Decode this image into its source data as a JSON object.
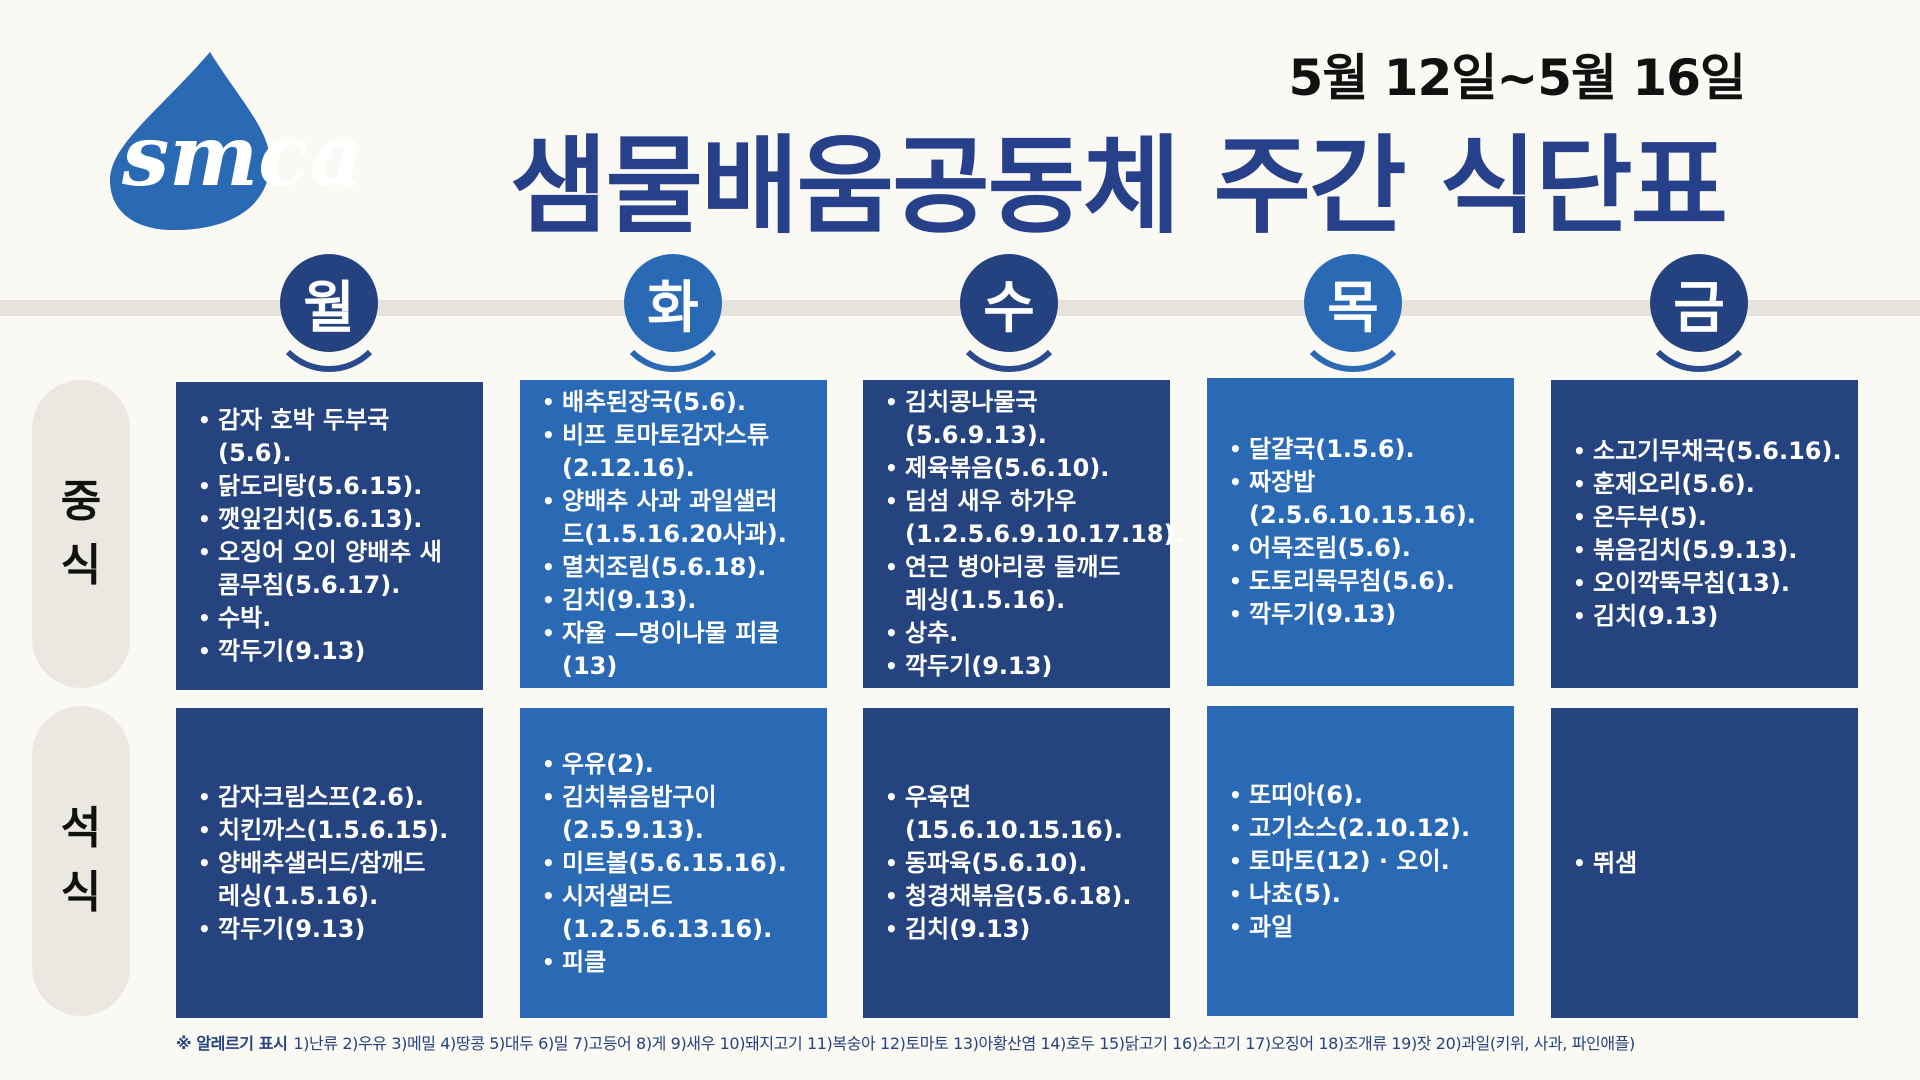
{
  "header": {
    "logo_text": "smca",
    "date_range": "5월 12일~5월 16일",
    "title": "샘물배움공동체 주간 식단표"
  },
  "days": [
    "월",
    "화",
    "수",
    "목",
    "금"
  ],
  "meals": {
    "lunch_label": [
      "중",
      "식"
    ],
    "dinner_label": [
      "석",
      "식"
    ]
  },
  "lunch": [
    [
      "감자 호박 두부국\n(5.6).",
      "닭도리탕(5.6.15).",
      "깻잎김치(5.6.13).",
      "오징어 오이 양배추 새\n콤무침(5.6.17).",
      "수박.",
      "깍두기(9.13)"
    ],
    [
      "배추된장국(5.6).",
      "비프 토마토감자스튜\n(2.12.16).",
      "양배추 사과 과일샐러\n드(1.5.16.20사과).",
      "멸치조림(5.6.18).",
      "김치(9.13).",
      "자율 —명이나물 피클\n(13)"
    ],
    [
      "김치콩나물국\n(5.6.9.13).",
      "제육볶음(5.6.10).",
      "딤섬 새우 하가우\n(1.2.5.6.9.10.17.18).",
      "연근 병아리콩 들깨드\n레싱(1.5.16).",
      "상추.",
      "깍두기(9.13)"
    ],
    [
      "달걀국(1.5.6).",
      "짜장밥\n(2.5.6.10.15.16).",
      "어묵조림(5.6).",
      "도토리묵무침(5.6).",
      "깍두기(9.13)"
    ],
    [
      "소고기무채국(5.6.16).",
      "훈제오리(5.6).",
      "온두부(5).",
      "볶음김치(5.9.13).",
      "오이깍뚝무침(13).",
      "김치(9.13)"
    ]
  ],
  "dinner": [
    [
      "감자크림스프(2.6).",
      "치킨까스(1.5.6.15).",
      "양배추샐러드/참깨드\n레싱(1.5.16).",
      "깍두기(9.13)"
    ],
    [
      "우유(2).",
      "김치볶음밥구이\n(2.5.9.13).",
      "미트볼(5.6.15.16).",
      "시저샐러드\n(1.2.5.6.13.16).",
      "피클"
    ],
    [
      "우육면\n(15.6.10.15.16).",
      "동파육(5.6.10).",
      "청경채볶음(5.6.18).",
      "김치(9.13)"
    ],
    [
      "또띠아(6).",
      "고기소스(2.10.12).",
      "토마토(12) · 오이.",
      "나쵸(5).",
      "과일"
    ],
    [
      "뛰샘"
    ]
  ],
  "allergy": {
    "label": "※ 알레르기 표시",
    "text": "1)난류 2)우유 3)메밀 4)땅콩 5)대두 6)밀 7)고등어 8)게 9)새우 10)돼지고기 11)복숭아 12)토마토 13)아황산염 14)호두 15)닭고기 16)소고기 17)오징어 18)조개류 19)잣 20)과일(키위, 사과, 파인애플)"
  },
  "colors": {
    "dark_blue": "#25437f",
    "light_blue": "#2a6ab4",
    "background": "#fbf9f3"
  }
}
